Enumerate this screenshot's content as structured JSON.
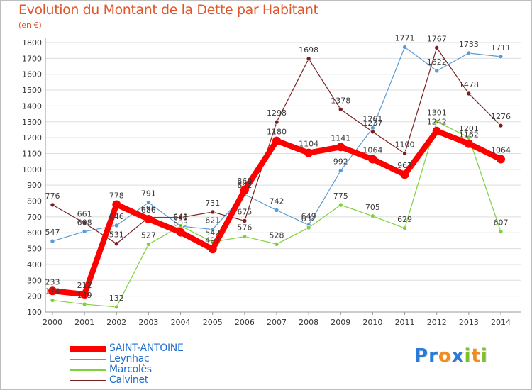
{
  "chart_data": {
    "type": "line",
    "title": "Evolution du Montant de la Dette par Habitant",
    "subtitle": "(en €)",
    "x": [
      "2000",
      "2001",
      "2002",
      "2003",
      "2004",
      "2005",
      "2006",
      "2007",
      "2008",
      "2009",
      "2010",
      "2011",
      "2012",
      "2013",
      "2014"
    ],
    "ylim": [
      100,
      1800
    ],
    "yticks": [
      100,
      200,
      300,
      400,
      500,
      600,
      700,
      800,
      900,
      1000,
      1100,
      1200,
      1300,
      1400,
      1500,
      1600,
      1700,
      1800
    ],
    "grid": "horizontal",
    "legend_position": "bottom-left",
    "series": [
      {
        "name": "SAINT-ANTOINE",
        "color": "#ff0000",
        "thick": true,
        "values": [
          233,
          212,
          778,
          686,
          603,
          497,
          869,
          1180,
          1104,
          1141,
          1064,
          967,
          1242,
          1162,
          1064
        ]
      },
      {
        "name": "Leynhac",
        "color": "#5b9bd5",
        "thick": false,
        "values": [
          547,
          608,
          646,
          791,
          641,
          621,
          842,
          742,
          649,
          992,
          1261,
          1771,
          1622,
          1733,
          1711
        ]
      },
      {
        "name": "Marcolès",
        "color": "#7fd13b",
        "thick": false,
        "values": [
          174,
          149,
          132,
          527,
          643,
          542,
          576,
          528,
          632,
          775,
          705,
          629,
          1301,
          1201,
          607
        ]
      },
      {
        "name": "Calvinet",
        "color": "#7b2020",
        "thick": false,
        "values": [
          776,
          661,
          531,
          696,
          696,
          731,
          675,
          1298,
          1698,
          1378,
          1237,
          1100,
          1767,
          1478,
          1276
        ]
      }
    ],
    "data_labels": [
      {
        "series": 0,
        "index": 0,
        "text": "233"
      },
      {
        "series": 0,
        "index": 1,
        "text": "212"
      },
      {
        "series": 0,
        "index": 2,
        "text": "778"
      },
      {
        "series": 0,
        "index": 3,
        "text": "686"
      },
      {
        "series": 0,
        "index": 4,
        "text": "603"
      },
      {
        "series": 0,
        "index": 5,
        "text": "497"
      },
      {
        "series": 0,
        "index": 6,
        "text": "869"
      },
      {
        "series": 0,
        "index": 7,
        "text": "1180"
      },
      {
        "series": 0,
        "index": 8,
        "text": "1104"
      },
      {
        "series": 0,
        "index": 9,
        "text": "1141"
      },
      {
        "series": 0,
        "index": 10,
        "text": "1064"
      },
      {
        "series": 0,
        "index": 11,
        "text": "967"
      },
      {
        "series": 0,
        "index": 12,
        "text": "1242"
      },
      {
        "series": 0,
        "index": 13,
        "text": "1162"
      },
      {
        "series": 0,
        "index": 14,
        "text": "1064"
      },
      {
        "series": 1,
        "index": 0,
        "text": "547"
      },
      {
        "series": 1,
        "index": 1,
        "text": "608"
      },
      {
        "series": 1,
        "index": 2,
        "text": "646"
      },
      {
        "series": 1,
        "index": 3,
        "text": "791"
      },
      {
        "series": 1,
        "index": 4,
        "text": "641"
      },
      {
        "series": 1,
        "index": 5,
        "text": "621"
      },
      {
        "series": 1,
        "index": 6,
        "text": "842"
      },
      {
        "series": 1,
        "index": 7,
        "text": "742"
      },
      {
        "series": 1,
        "index": 8,
        "text": "649"
      },
      {
        "series": 1,
        "index": 9,
        "text": "992"
      },
      {
        "series": 1,
        "index": 10,
        "text": "1261"
      },
      {
        "series": 1,
        "index": 11,
        "text": "1771"
      },
      {
        "series": 1,
        "index": 12,
        "text": "1622"
      },
      {
        "series": 1,
        "index": 13,
        "text": "1733"
      },
      {
        "series": 1,
        "index": 14,
        "text": "1711"
      },
      {
        "series": 2,
        "index": 0,
        "text": "174"
      },
      {
        "series": 2,
        "index": 1,
        "text": "149"
      },
      {
        "series": 2,
        "index": 2,
        "text": "132"
      },
      {
        "series": 2,
        "index": 3,
        "text": "527"
      },
      {
        "series": 2,
        "index": 4,
        "text": "643"
      },
      {
        "series": 2,
        "index": 5,
        "text": "542"
      },
      {
        "series": 2,
        "index": 6,
        "text": "576"
      },
      {
        "series": 2,
        "index": 7,
        "text": "528"
      },
      {
        "series": 2,
        "index": 8,
        "text": "632"
      },
      {
        "series": 2,
        "index": 9,
        "text": "775"
      },
      {
        "series": 2,
        "index": 10,
        "text": "705"
      },
      {
        "series": 2,
        "index": 11,
        "text": "629"
      },
      {
        "series": 2,
        "index": 12,
        "text": "1301"
      },
      {
        "series": 2,
        "index": 13,
        "text": "1201"
      },
      {
        "series": 2,
        "index": 14,
        "text": "607"
      },
      {
        "series": 3,
        "index": 0,
        "text": "776"
      },
      {
        "series": 3,
        "index": 1,
        "text": "661"
      },
      {
        "series": 3,
        "index": 2,
        "text": "531"
      },
      {
        "series": 3,
        "index": 3,
        "text": "696"
      },
      {
        "series": 3,
        "index": 5,
        "text": "731"
      },
      {
        "series": 3,
        "index": 6,
        "text": "675"
      },
      {
        "series": 3,
        "index": 7,
        "text": "1298"
      },
      {
        "series": 3,
        "index": 8,
        "text": "1698"
      },
      {
        "series": 3,
        "index": 9,
        "text": "1378"
      },
      {
        "series": 3,
        "index": 10,
        "text": "1237"
      },
      {
        "series": 3,
        "index": 11,
        "text": "1100"
      },
      {
        "series": 3,
        "index": 12,
        "text": "1767"
      },
      {
        "series": 3,
        "index": 13,
        "text": "1478"
      },
      {
        "series": 3,
        "index": 14,
        "text": "1276"
      }
    ]
  },
  "logo": {
    "letters": [
      {
        "char": "P",
        "color": "#2b7bd6"
      },
      {
        "char": "r",
        "color": "#2b7bd6"
      },
      {
        "char": "o",
        "color": "#f28c1e"
      },
      {
        "char": "x",
        "color": "#2b7bd6"
      },
      {
        "char": "i",
        "color": "#7fbf2a"
      },
      {
        "char": "t",
        "color": "#f28c1e"
      },
      {
        "char": "i",
        "color": "#7fbf2a"
      }
    ]
  }
}
